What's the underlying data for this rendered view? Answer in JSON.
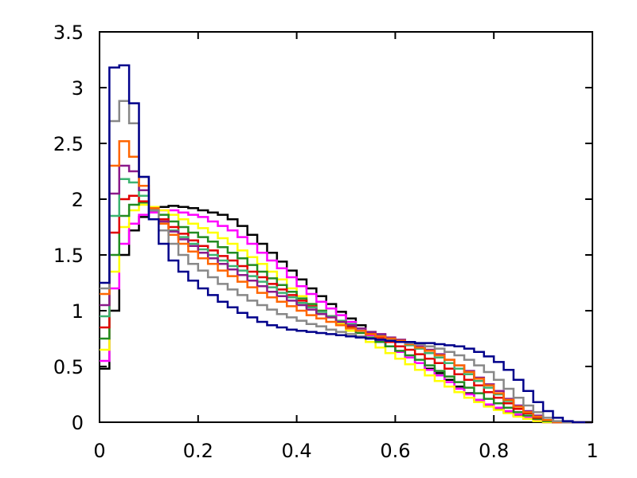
{
  "chart_data": {
    "type": "line",
    "title": "",
    "xlabel": "",
    "ylabel": "",
    "step": true,
    "xlim": [
      0,
      1
    ],
    "ylim": [
      0,
      3.5
    ],
    "grid": false,
    "legend": "none",
    "x_ticks": [
      0,
      0.2,
      0.4,
      0.6,
      0.8,
      1
    ],
    "x_tick_labels": [
      "0",
      "0.2",
      "0.4",
      "0.6",
      "0.8",
      "1"
    ],
    "y_ticks": [
      0,
      0.5,
      1,
      1.5,
      2,
      2.5,
      3,
      3.5
    ],
    "y_tick_labels": [
      "0",
      "0.5",
      "1",
      "1.5",
      "2",
      "2.5",
      "3",
      "3.5"
    ],
    "bin_width": 0.02,
    "series": [
      {
        "color": "#000000",
        "values": [
          0.48,
          1.0,
          1.5,
          1.72,
          1.84,
          1.9,
          1.93,
          1.94,
          1.93,
          1.92,
          1.9,
          1.88,
          1.86,
          1.82,
          1.76,
          1.68,
          1.6,
          1.52,
          1.44,
          1.36,
          1.28,
          1.2,
          1.13,
          1.06,
          0.99,
          0.93,
          0.87,
          0.8,
          0.74,
          0.68,
          0.63,
          0.58,
          0.53,
          0.48,
          0.44,
          0.38,
          0.32,
          0.26,
          0.2,
          0.15,
          0.12,
          0.09,
          0.06,
          0.03,
          0.01,
          0.0,
          0.0,
          0.0,
          0.0,
          0.0
        ]
      },
      {
        "color": "#ff00ff",
        "values": [
          0.55,
          1.2,
          1.6,
          1.78,
          1.86,
          1.88,
          1.9,
          1.9,
          1.88,
          1.86,
          1.84,
          1.8,
          1.76,
          1.72,
          1.66,
          1.6,
          1.52,
          1.45,
          1.38,
          1.3,
          1.22,
          1.15,
          1.08,
          1.02,
          0.96,
          0.9,
          0.84,
          0.78,
          0.73,
          0.68,
          0.63,
          0.58,
          0.53,
          0.47,
          0.42,
          0.36,
          0.3,
          0.25,
          0.2,
          0.16,
          0.13,
          0.1,
          0.07,
          0.04,
          0.02,
          0.0,
          0.0,
          0.0,
          0.0,
          0.0
        ]
      },
      {
        "color": "#ffff00",
        "values": [
          0.65,
          1.35,
          1.75,
          1.9,
          1.95,
          1.93,
          1.9,
          1.86,
          1.82,
          1.78,
          1.74,
          1.7,
          1.65,
          1.6,
          1.54,
          1.48,
          1.42,
          1.35,
          1.28,
          1.2,
          1.13,
          1.06,
          1.0,
          0.94,
          0.88,
          0.82,
          0.77,
          0.72,
          0.67,
          0.62,
          0.57,
          0.52,
          0.47,
          0.42,
          0.37,
          0.32,
          0.27,
          0.22,
          0.18,
          0.14,
          0.11,
          0.08,
          0.05,
          0.03,
          0.01,
          0.0,
          0.0,
          0.0,
          0.0,
          0.0
        ]
      },
      {
        "color": "#228b22",
        "values": [
          0.75,
          1.5,
          1.85,
          1.95,
          1.97,
          1.92,
          1.86,
          1.8,
          1.75,
          1.7,
          1.66,
          1.62,
          1.57,
          1.52,
          1.47,
          1.41,
          1.35,
          1.29,
          1.23,
          1.17,
          1.11,
          1.06,
          1.0,
          0.95,
          0.9,
          0.85,
          0.8,
          0.76,
          0.72,
          0.68,
          0.64,
          0.6,
          0.56,
          0.51,
          0.46,
          0.41,
          0.36,
          0.31,
          0.26,
          0.21,
          0.17,
          0.13,
          0.09,
          0.06,
          0.03,
          0.01,
          0.0,
          0.0,
          0.0,
          0.0
        ]
      },
      {
        "color": "#e00000",
        "values": [
          0.85,
          1.7,
          2.0,
          2.03,
          1.98,
          1.9,
          1.82,
          1.75,
          1.69,
          1.63,
          1.58,
          1.54,
          1.49,
          1.45,
          1.4,
          1.35,
          1.3,
          1.24,
          1.19,
          1.14,
          1.09,
          1.04,
          0.99,
          0.95,
          0.9,
          0.86,
          0.82,
          0.79,
          0.76,
          0.72,
          0.68,
          0.65,
          0.61,
          0.57,
          0.53,
          0.48,
          0.43,
          0.38,
          0.33,
          0.27,
          0.22,
          0.17,
          0.12,
          0.08,
          0.04,
          0.02,
          0.0,
          0.0,
          0.0,
          0.0
        ]
      },
      {
        "color": "#3cb371",
        "values": [
          0.95,
          1.85,
          2.18,
          2.15,
          2.03,
          1.9,
          1.8,
          1.72,
          1.66,
          1.6,
          1.55,
          1.5,
          1.45,
          1.4,
          1.36,
          1.31,
          1.26,
          1.21,
          1.16,
          1.12,
          1.07,
          1.03,
          0.99,
          0.95,
          0.91,
          0.88,
          0.84,
          0.81,
          0.78,
          0.75,
          0.72,
          0.69,
          0.66,
          0.62,
          0.58,
          0.53,
          0.48,
          0.43,
          0.37,
          0.31,
          0.25,
          0.19,
          0.14,
          0.09,
          0.05,
          0.02,
          0.0,
          0.0,
          0.0,
          0.0
        ]
      },
      {
        "color": "#8b1a8b",
        "values": [
          1.05,
          2.05,
          2.3,
          2.25,
          2.08,
          1.92,
          1.8,
          1.71,
          1.64,
          1.58,
          1.52,
          1.47,
          1.42,
          1.37,
          1.32,
          1.27,
          1.22,
          1.17,
          1.13,
          1.09,
          1.05,
          1.01,
          0.97,
          0.94,
          0.9,
          0.87,
          0.84,
          0.81,
          0.79,
          0.76,
          0.74,
          0.71,
          0.68,
          0.65,
          0.61,
          0.56,
          0.51,
          0.46,
          0.4,
          0.34,
          0.28,
          0.21,
          0.15,
          0.1,
          0.06,
          0.02,
          0.0,
          0.0,
          0.0,
          0.0
        ]
      },
      {
        "color": "#ff6600",
        "values": [
          1.15,
          2.3,
          2.52,
          2.38,
          2.12,
          1.92,
          1.78,
          1.68,
          1.6,
          1.53,
          1.47,
          1.42,
          1.36,
          1.31,
          1.26,
          1.21,
          1.16,
          1.12,
          1.08,
          1.04,
          1.0,
          0.96,
          0.93,
          0.9,
          0.87,
          0.84,
          0.82,
          0.79,
          0.77,
          0.75,
          0.73,
          0.7,
          0.67,
          0.64,
          0.6,
          0.56,
          0.51,
          0.45,
          0.39,
          0.33,
          0.26,
          0.2,
          0.14,
          0.09,
          0.05,
          0.02,
          0.0,
          0.0,
          0.0,
          0.0
        ]
      },
      {
        "color": "#888888",
        "values": [
          1.2,
          2.7,
          2.88,
          2.68,
          2.2,
          1.9,
          1.72,
          1.6,
          1.5,
          1.42,
          1.36,
          1.3,
          1.24,
          1.19,
          1.14,
          1.09,
          1.05,
          1.01,
          0.97,
          0.94,
          0.91,
          0.88,
          0.86,
          0.83,
          0.81,
          0.79,
          0.77,
          0.75,
          0.74,
          0.73,
          0.72,
          0.71,
          0.7,
          0.68,
          0.66,
          0.63,
          0.6,
          0.56,
          0.51,
          0.45,
          0.38,
          0.3,
          0.22,
          0.15,
          0.09,
          0.04,
          0.01,
          0.0,
          0.0,
          0.0
        ]
      },
      {
        "color": "#00008b",
        "values": [
          1.25,
          3.18,
          3.2,
          2.86,
          2.2,
          1.82,
          1.6,
          1.45,
          1.35,
          1.27,
          1.2,
          1.14,
          1.08,
          1.03,
          0.98,
          0.94,
          0.9,
          0.87,
          0.85,
          0.83,
          0.82,
          0.81,
          0.8,
          0.79,
          0.78,
          0.77,
          0.76,
          0.75,
          0.74,
          0.73,
          0.72,
          0.72,
          0.71,
          0.71,
          0.7,
          0.69,
          0.68,
          0.66,
          0.63,
          0.59,
          0.54,
          0.47,
          0.38,
          0.28,
          0.18,
          0.1,
          0.04,
          0.01,
          0.0,
          0.0
        ]
      }
    ]
  }
}
